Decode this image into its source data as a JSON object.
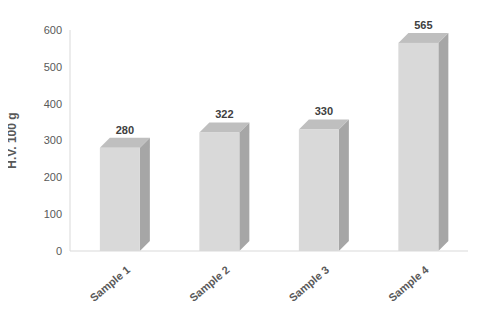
{
  "chart_data": {
    "type": "bar",
    "categories": [
      "Sample 1",
      "Sample 2",
      "Sample 3",
      "Sample 4"
    ],
    "values": [
      280,
      322,
      330,
      565
    ],
    "color": "#d9d9d9",
    "ylabel": "H.V. 100 g",
    "ylim": [
      0,
      600
    ],
    "yticks": [
      0,
      100,
      200,
      300,
      400,
      500,
      600
    ],
    "grid": false,
    "data_labels": true
  }
}
